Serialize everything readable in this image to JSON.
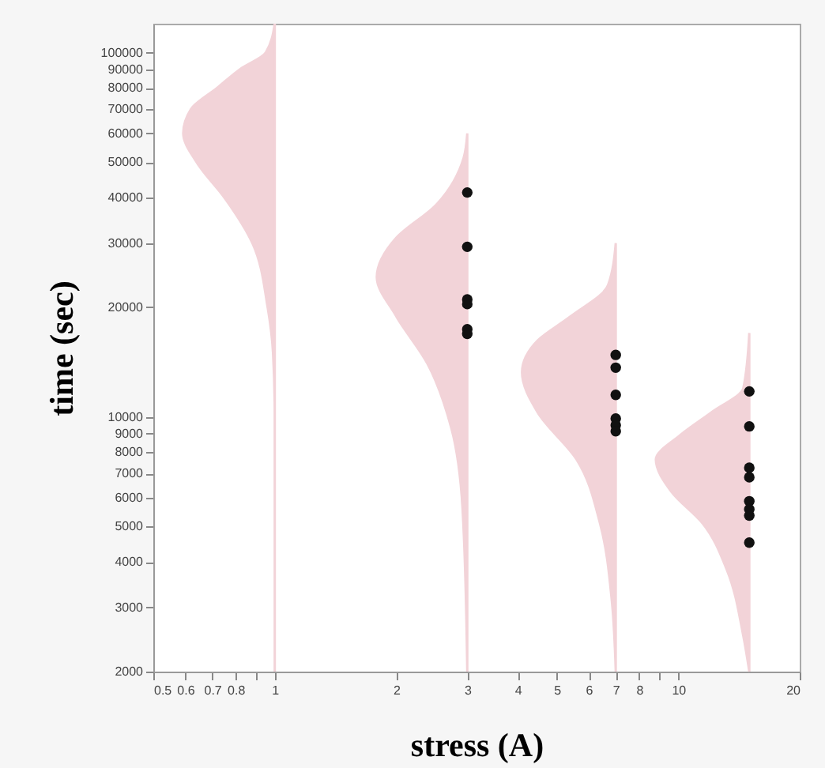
{
  "chart_data": {
    "type": "area",
    "xlabel": "stress (A)",
    "ylabel": "time (sec)",
    "log": "xy",
    "xlim": [
      0.5,
      20
    ],
    "ylim": [
      2000,
      120000
    ],
    "xticks": [
      0.5,
      0.6,
      0.7,
      0.8,
      {
        "value": 0.9,
        "label": null
      },
      1,
      2,
      3,
      4,
      5,
      6,
      7,
      8,
      {
        "value": 9,
        "label": null
      },
      10,
      20
    ],
    "yticks": [
      2000,
      3000,
      4000,
      5000,
      6000,
      7000,
      8000,
      9000,
      10000,
      20000,
      30000,
      40000,
      50000,
      60000,
      70000,
      80000,
      90000,
      100000
    ],
    "series": [
      {
        "color": "#f2d3d8",
        "x": [
          1,
          1,
          0.99,
          0.96,
          0.88,
          0.75,
          0.64,
          0.593,
          0.62,
          0.72,
          0.82,
          0.95,
          1
        ],
        "values": [
          2000,
          10000,
          15000,
          20000,
          30000,
          40000,
          50000,
          60000,
          70000,
          80000,
          90000,
          100000,
          120000
        ]
      },
      {
        "color": "#f2d3d8",
        "x": [
          3,
          2.92,
          2.74,
          2.39,
          2.0,
          1.79,
          2.0,
          2.5,
          2.94,
          3
        ],
        "values": [
          2000,
          5600,
          9300,
          14000,
          18900,
          24200,
          31000,
          38000,
          51500,
          60000
        ]
      },
      {
        "color": "#f2d3d8",
        "x": [
          7,
          6.85,
          6.4,
          5.6,
          4.48,
          4.1,
          4.48,
          5.38,
          6.7,
          7
        ],
        "values": [
          2000,
          3100,
          5100,
          7640,
          10300,
          13250,
          16200,
          18800,
          23000,
          30000
        ]
      },
      {
        "color": "#f2d3d8",
        "x": [
          15,
          14.5,
          13.2,
          11.5,
          9.6,
          8.8,
          10.1,
          12.1,
          14.5,
          15
        ],
        "values": [
          2000,
          2500,
          3800,
          5100,
          6250,
          7640,
          8900,
          10300,
          12000,
          17000
        ]
      },
      {
        "type": "scatter",
        "color": "#111111",
        "marker": "circle",
        "x": [
          3,
          3,
          3,
          3,
          3,
          3,
          7,
          7,
          7,
          7,
          7,
          7,
          15,
          15,
          15,
          15,
          15,
          15,
          15,
          15
        ],
        "values": [
          41300,
          29300,
          21000,
          20400,
          17400,
          16900,
          14800,
          13650,
          11500,
          9900,
          9500,
          9140,
          11750,
          9420,
          7250,
          6830,
          5870,
          5580,
          5360,
          4520
        ]
      }
    ]
  }
}
